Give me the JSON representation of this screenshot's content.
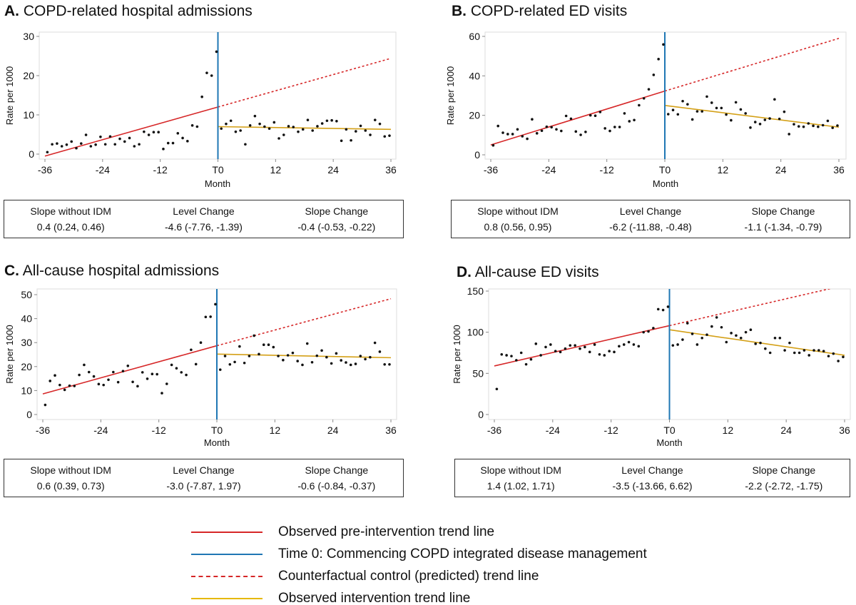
{
  "chart_data": [
    {
      "id": "A",
      "type": "scatter",
      "title_letter": "A.",
      "title": "COPD-related hospital admissions",
      "xlabel": "Month",
      "ylabel": "Rate per 1000",
      "xlim": [
        -36,
        36
      ],
      "ylim": [
        0,
        30
      ],
      "xticks": [
        -36,
        -24,
        -12,
        0,
        12,
        24,
        36
      ],
      "xtick_labels": [
        "-36",
        "-24",
        "-12",
        "T0",
        "12",
        "24",
        "36"
      ],
      "yticks": [
        0,
        10,
        20,
        30
      ],
      "ytick_labels": [
        "0",
        "10",
        "20",
        "30"
      ],
      "pre_values": [
        0.5,
        2.5,
        2.7,
        2,
        2.4,
        3.2,
        1.5,
        2.7,
        4.9,
        2,
        2.4,
        4.4,
        2.5,
        4.5,
        2.5,
        3.9,
        3.2,
        4.1,
        2,
        2.5,
        5.7,
        4.9,
        5.6,
        5.6,
        1.3,
        2.8,
        2.8,
        5.3,
        4.1,
        3.3,
        7.3,
        7,
        14.6,
        20.7,
        20,
        26.1
      ],
      "post_values": [
        6.5,
        7.7,
        8.5,
        5.7,
        6,
        2.5,
        7.3,
        9.7,
        7.7,
        7,
        6.5,
        8.1,
        4,
        4.9,
        7.1,
        6.9,
        5.7,
        6.3,
        8.7,
        6,
        7.1,
        7.8,
        8.5,
        8.6,
        8.4,
        3.4,
        6.3,
        3.5,
        5.8,
        7.2,
        6,
        4.9,
        8.7,
        7.7,
        4.5,
        4.7
      ],
      "pre_trend": [
        [
          -36,
          -0.5
        ],
        [
          0,
          12
        ]
      ],
      "counterfactual": [
        [
          0,
          12
        ],
        [
          36,
          24.4
        ]
      ],
      "post_trend": [
        [
          0,
          7
        ],
        [
          36,
          6.3
        ]
      ],
      "stats": [
        {
          "label": "Slope without IDM",
          "value": "0.4 (0.24, 0.46)"
        },
        {
          "label": "Level Change",
          "value": "-4.6 (-7.76, -1.39)"
        },
        {
          "label": "Slope Change",
          "value": "-0.4 (-0.53, -0.22)"
        }
      ]
    },
    {
      "id": "B",
      "type": "scatter",
      "title_letter": "B.",
      "title": "COPD-related ED visits",
      "xlabel": "Month",
      "ylabel": "Rate per 1000",
      "xlim": [
        -36,
        36
      ],
      "ylim": [
        0,
        60
      ],
      "xticks": [
        -36,
        -24,
        -12,
        0,
        12,
        24,
        36
      ],
      "xtick_labels": [
        "-36",
        "-24",
        "-12",
        "T0",
        "12",
        "24",
        "36"
      ],
      "yticks": [
        0,
        20,
        40,
        60
      ],
      "ytick_labels": [
        "0",
        "20",
        "40",
        "60"
      ],
      "pre_values": [
        4.8,
        14.6,
        11.2,
        10.5,
        10.5,
        12.9,
        9.4,
        8.1,
        18,
        10.9,
        12.2,
        14.2,
        14,
        12.9,
        12.1,
        19.7,
        18.3,
        11.8,
        10.1,
        11.6,
        20,
        19.8,
        21.7,
        13.4,
        12.1,
        14.1,
        14.1,
        21,
        17,
        17.6,
        25.1,
        28.6,
        33.2,
        40.5,
        48.5,
        55.9
      ],
      "post_values": [
        20.6,
        22.7,
        20.5,
        27.2,
        25.6,
        17.9,
        22,
        22,
        29.5,
        26.4,
        23.7,
        23.7,
        20.4,
        17.5,
        26.6,
        23,
        21,
        13.8,
        16.6,
        15.6,
        17.7,
        18.4,
        28.1,
        18.2,
        21.8,
        10.5,
        15.5,
        14.4,
        14.2,
        15.9,
        14.7,
        14.2,
        15,
        17.2,
        13.7,
        14.8
      ],
      "pre_trend": [
        [
          -36,
          5
        ],
        [
          0,
          32.3
        ]
      ],
      "counterfactual": [
        [
          0,
          32.3
        ],
        [
          36,
          59
        ]
      ],
      "post_trend": [
        [
          0,
          25
        ],
        [
          36,
          14
        ]
      ],
      "stats": [
        {
          "label": "Slope without IDM",
          "value": "0.8 (0.56, 0.95)"
        },
        {
          "label": "Level Change",
          "value": "-6.2 (-11.88, -0.48)"
        },
        {
          "label": "Slope Change",
          "value": "-1.1 (-1.34, -0.79)"
        }
      ]
    },
    {
      "id": "C",
      "type": "scatter",
      "title_letter": "C.",
      "title": "All-cause hospital admissions",
      "xlabel": "Month",
      "ylabel": "Rate per 1000",
      "xlim": [
        -36,
        36
      ],
      "ylim": [
        0,
        50
      ],
      "xticks": [
        -36,
        -24,
        -12,
        0,
        12,
        24,
        36
      ],
      "xtick_labels": [
        "-36",
        "-24",
        "-12",
        "T0",
        "12",
        "24",
        "36"
      ],
      "yticks": [
        0,
        10,
        20,
        30,
        40,
        50
      ],
      "ytick_labels": [
        "0",
        "10",
        "20",
        "30",
        "40",
        "50"
      ],
      "pre_values": [
        4,
        14,
        16.3,
        12.3,
        10.3,
        12,
        11.9,
        16.5,
        20.7,
        17.7,
        15.9,
        12.7,
        12.3,
        14.5,
        17.7,
        13.5,
        18.1,
        20.3,
        13.6,
        11.8,
        17.6,
        14.9,
        16.9,
        16.8,
        8.9,
        12.8,
        20.7,
        19.3,
        17.6,
        16.5,
        27,
        21,
        30,
        40.7,
        40.8,
        46
      ],
      "post_values": [
        18.7,
        24.4,
        20.9,
        21.9,
        28.4,
        21.5,
        24.4,
        32.9,
        25.2,
        29.1,
        29.1,
        28.1,
        24.4,
        22.7,
        24.7,
        25.7,
        22.3,
        20.7,
        29.6,
        21.8,
        24.5,
        26.7,
        23.9,
        21.3,
        25.5,
        22.6,
        21.7,
        20.7,
        21.1,
        24.4,
        23.1,
        23.9,
        29.9,
        26.2,
        20.9,
        20.9
      ],
      "pre_trend": [
        [
          -36,
          8.6
        ],
        [
          0,
          28.7
        ]
      ],
      "counterfactual": [
        [
          0,
          28.7
        ],
        [
          36,
          48.3
        ]
      ],
      "post_trend": [
        [
          0,
          25.2
        ],
        [
          36,
          23.7
        ]
      ],
      "stats": [
        {
          "label": "Slope without IDM",
          "value": "0.6 (0.39, 0.73)"
        },
        {
          "label": "Level Change",
          "value": "-3.0 (-7.87, 1.97)"
        },
        {
          "label": "Slope Change",
          "value": "-0.6 (-0.84, -0.37)"
        }
      ]
    },
    {
      "id": "D",
      "type": "scatter",
      "title_letter": "D.",
      "title": "All-cause ED visits",
      "xlabel": "Month",
      "ylabel": "Rate per 1000",
      "xlim": [
        -36,
        36
      ],
      "ylim": [
        0,
        150
      ],
      "xticks": [
        -36,
        -24,
        -12,
        0,
        12,
        24,
        36
      ],
      "xtick_labels": [
        "-36",
        "-24",
        "-12",
        "T0",
        "12",
        "24",
        "36"
      ],
      "yticks": [
        0,
        50,
        100,
        150
      ],
      "ytick_labels": [
        "0",
        "50",
        "100",
        "150"
      ],
      "pre_values": [
        31,
        73,
        72,
        71,
        66,
        75,
        61,
        67,
        86,
        72,
        82,
        85,
        77,
        76,
        80,
        84,
        84,
        80,
        82,
        76,
        85,
        73,
        72,
        77,
        76,
        83,
        85,
        88,
        85,
        83,
        100,
        101,
        105,
        128,
        127,
        131
      ],
      "post_values": [
        84,
        85,
        91,
        111,
        98,
        85,
        93,
        97,
        107,
        118,
        106,
        88,
        99,
        96,
        93,
        100,
        103,
        86,
        87,
        80,
        75,
        93,
        93,
        78,
        87,
        75,
        75,
        78,
        72,
        78,
        78,
        77,
        71,
        74,
        65,
        70
      ],
      "pre_trend": [
        [
          -36,
          59
        ],
        [
          0,
          108
        ]
      ],
      "counterfactual": [
        [
          0,
          108
        ],
        [
          36,
          157
        ]
      ],
      "post_trend": [
        [
          0,
          103
        ],
        [
          36,
          72
        ]
      ],
      "stats": [
        {
          "label": "Slope without IDM",
          "value": "1.4 (1.02, 1.71)"
        },
        {
          "label": "Level Change",
          "value": "-3.5 (-13.66, 6.62)"
        },
        {
          "label": "Slope Change",
          "value": "-2.2 (-2.72, -1.75)"
        }
      ]
    }
  ],
  "colors": {
    "pre_trend": "#d62728",
    "time0": "#1f77b4",
    "counterfactual": "#d62728",
    "post_trend": "#d4a017",
    "points": "#111111"
  },
  "legend": [
    {
      "label": "Observed pre-intervention trend line",
      "color": "#d62728",
      "style": "solid"
    },
    {
      "label": "Time 0: Commencing COPD  integrated disease management",
      "color": "#1f77b4",
      "style": "solid"
    },
    {
      "label": "Counterfactual control (predicted) trend line",
      "color": "#d62728",
      "style": "dashed"
    },
    {
      "label": "Observed intervention trend line",
      "color": "#e6b800",
      "style": "solid"
    }
  ]
}
